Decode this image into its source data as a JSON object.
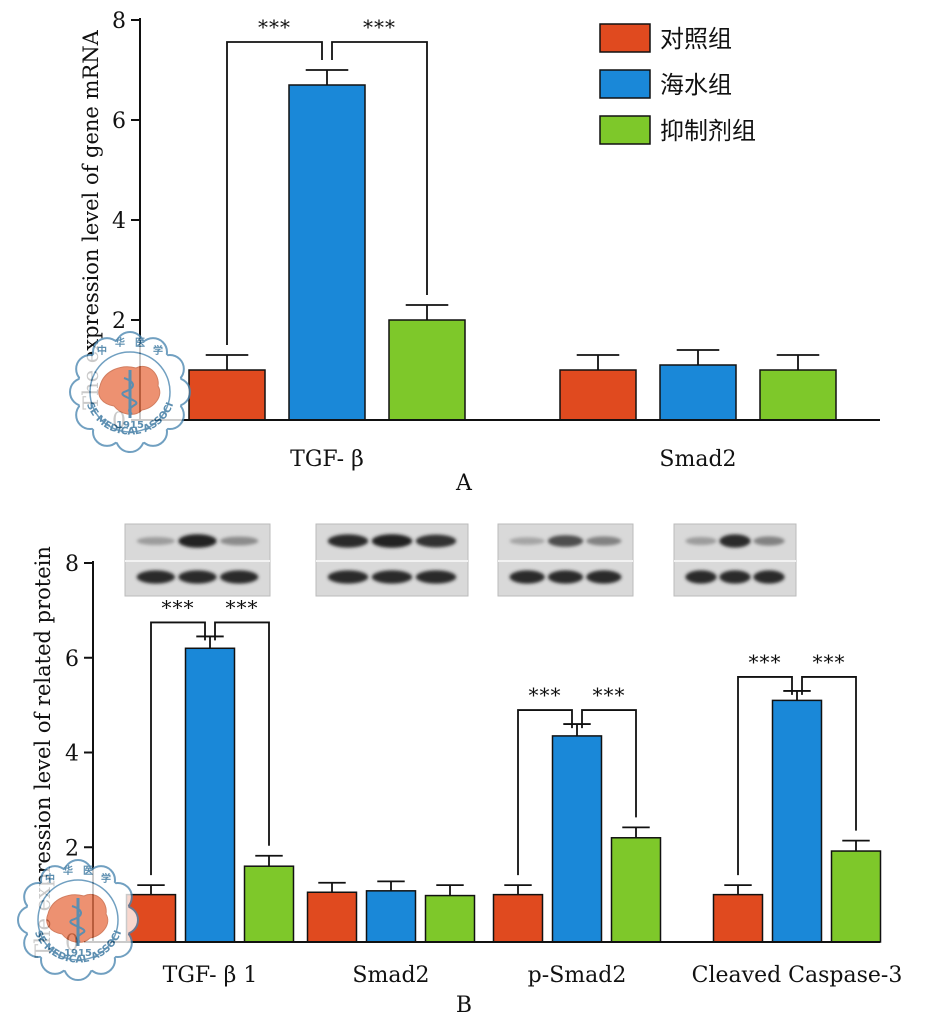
{
  "colors": {
    "control": "#e04a1f",
    "seawater": "#1a88d8",
    "inhibitor": "#7ec82a",
    "axis": "#111111"
  },
  "seal_text": [
    "中",
    "华",
    "医",
    "学",
    "CHINESE MEDICAL ASSOCIATION",
    "1915"
  ],
  "chart_data": [
    {
      "type": "bar",
      "panel": "A",
      "ylabel": "The expression level of gene mRNA",
      "ylim": [
        0,
        8
      ],
      "yticks": [
        0,
        2,
        4,
        6,
        8
      ],
      "categories": [
        "TGF- β",
        "Smad2"
      ],
      "series": [
        {
          "name": "对照组",
          "key": "control",
          "values": [
            1.0,
            1.0
          ],
          "errors": [
            0.3,
            0.3
          ]
        },
        {
          "name": "海水组",
          "key": "seawater",
          "values": [
            6.7,
            1.1
          ],
          "errors": [
            0.3,
            0.3
          ]
        },
        {
          "name": "抑制剂组",
          "key": "inhibitor",
          "values": [
            2.0,
            1.0
          ],
          "errors": [
            0.3,
            0.3
          ]
        }
      ],
      "significance": [
        {
          "category": 0,
          "from": 0,
          "to": 1,
          "label": "***"
        },
        {
          "category": 0,
          "from": 1,
          "to": 2,
          "label": "***"
        }
      ],
      "legend": [
        "对照组",
        "海水组",
        "抑制剂组"
      ],
      "legend_position": "top-right"
    },
    {
      "type": "bar",
      "panel": "B",
      "ylabel": "The expression level of related protein",
      "ylim": [
        0,
        8
      ],
      "yticks": [
        0,
        2,
        4,
        6,
        8
      ],
      "categories": [
        "TGF- β 1",
        "Smad2",
        "p-Smad2",
        "Cleaved Caspase-3"
      ],
      "series": [
        {
          "name": "对照组",
          "key": "control",
          "values": [
            1.0,
            1.05,
            1.0,
            1.0
          ],
          "errors": [
            0.2,
            0.2,
            0.2,
            0.2
          ]
        },
        {
          "name": "海水组",
          "key": "seawater",
          "values": [
            6.2,
            1.08,
            4.35,
            5.1
          ],
          "errors": [
            0.25,
            0.2,
            0.25,
            0.2
          ]
        },
        {
          "name": "抑制剂组",
          "key": "inhibitor",
          "values": [
            1.6,
            0.98,
            2.2,
            1.92
          ],
          "errors": [
            0.22,
            0.22,
            0.22,
            0.22
          ]
        }
      ],
      "significance": [
        {
          "category": 0,
          "from": 0,
          "to": 1,
          "label": "***"
        },
        {
          "category": 0,
          "from": 1,
          "to": 2,
          "label": "***"
        },
        {
          "category": 2,
          "from": 0,
          "to": 1,
          "label": "***"
        },
        {
          "category": 2,
          "from": 1,
          "to": 2,
          "label": "***"
        },
        {
          "category": 3,
          "from": 0,
          "to": 1,
          "label": "***"
        },
        {
          "category": 3,
          "from": 1,
          "to": 2,
          "label": "***"
        }
      ],
      "blots": [
        {
          "category": "TGF- β 1",
          "top": [
            0.25,
            0.95,
            0.35
          ],
          "bottom": [
            0.9,
            0.9,
            0.9
          ]
        },
        {
          "category": "Smad2",
          "top": [
            0.9,
            0.95,
            0.85
          ],
          "bottom": [
            0.9,
            0.9,
            0.9
          ]
        },
        {
          "category": "p-Smad2",
          "top": [
            0.2,
            0.7,
            0.4
          ],
          "bottom": [
            0.9,
            0.9,
            0.9
          ]
        },
        {
          "category": "Cleaved Caspase-3",
          "top": [
            0.25,
            0.9,
            0.4
          ],
          "bottom": [
            0.9,
            0.9,
            0.9
          ]
        }
      ]
    }
  ]
}
